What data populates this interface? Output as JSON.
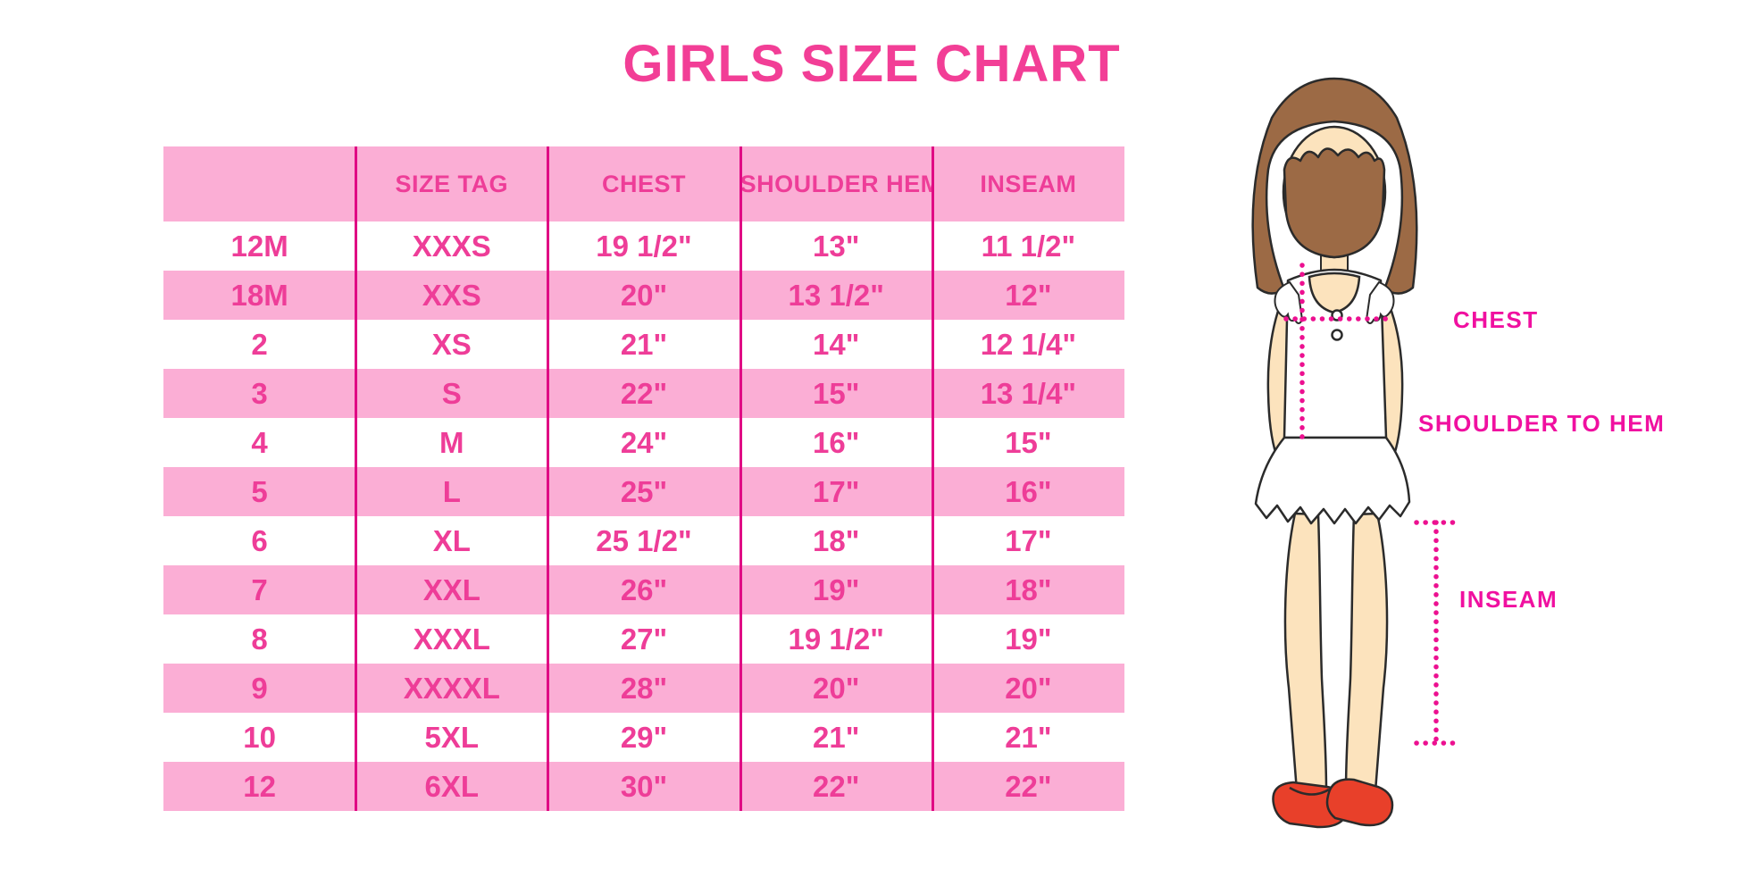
{
  "title": "GIRLS SIZE CHART",
  "chart_data": {
    "type": "table",
    "title": "GIRLS SIZE CHART",
    "columns": [
      "",
      "SIZE TAG",
      "CHEST",
      "SHOULDER HEM",
      "INSEAM"
    ],
    "rows": [
      [
        "12M",
        "XXXS",
        "19 1/2\"",
        "13\"",
        "11 1/2\""
      ],
      [
        "18M",
        "XXS",
        "20\"",
        "13 1/2\"",
        "12\""
      ],
      [
        "2",
        "XS",
        "21\"",
        "14\"",
        "12 1/4\""
      ],
      [
        "3",
        "S",
        "22\"",
        "15\"",
        "13 1/4\""
      ],
      [
        "4",
        "M",
        "24\"",
        "16\"",
        "15\""
      ],
      [
        "5",
        "L",
        "25\"",
        "17\"",
        "16\""
      ],
      [
        "6",
        "XL",
        "25 1/2\"",
        "18\"",
        "17\""
      ],
      [
        "7",
        "XXL",
        "26\"",
        "19\"",
        "18\""
      ],
      [
        "8",
        "XXXL",
        "27\"",
        "19 1/2\"",
        "19\""
      ],
      [
        "9",
        "XXXXL",
        "28\"",
        "20\"",
        "20\""
      ],
      [
        "10",
        "5XL",
        "29\"",
        "21\"",
        "21\""
      ],
      [
        "12",
        "6XL",
        "30\"",
        "22\"",
        "22\""
      ]
    ],
    "layout": {
      "grid": "vertical-dividers-only",
      "alternating_rows": true
    }
  },
  "figure": {
    "illustration": "toddler-girl-front-view",
    "labels": {
      "chest": "CHEST",
      "shoulder_to_hem": "SHOULDER TO HEM",
      "inseam": "INSEAM"
    }
  },
  "colors": {
    "title_pink": "#f23e96",
    "row_pink": "#fbaed5",
    "cell_text_pink": "#ee3d98",
    "divider_magenta": "#e00b84",
    "label_magenta": "#f010a0",
    "dotted_line_magenta": "#ec1090",
    "hair_brown": "#9c6a45",
    "skin": "#fce3bd",
    "shoe_red": "#e8402a"
  }
}
